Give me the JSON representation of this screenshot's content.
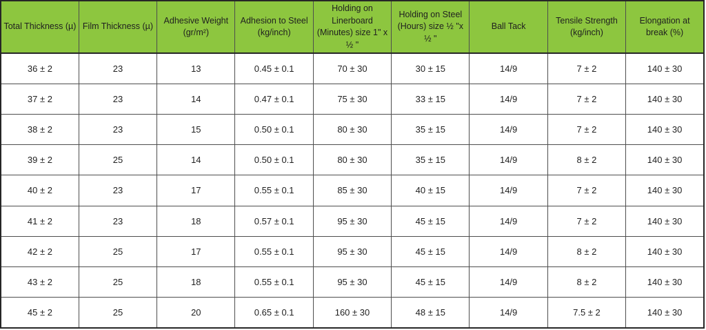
{
  "table": {
    "title": "adhesive-tape-specification-table",
    "colors": {
      "header_bg": "#8dc63f",
      "border_inner": "#4d4d4d",
      "border_outer": "#262626",
      "text": "#1f1f1f",
      "row_bg": "#ffffff"
    },
    "headers": [
      "Total Thickness (µ)",
      "Film Thickness (µ)",
      "Adhesive Weight\n(gr/m²)",
      "Adhesion to Steel\n(kg/inch)",
      "Holding on\nLinerboard\n(Minutes) size 1\" x\n½ \"",
      "Holding on Steel\n(Hours)  size  ½ \"x\n½ \"",
      "Ball Tack",
      "Tensile Strength\n(kg/inch)",
      "Elongation at\nbreak   (%)"
    ],
    "rows": [
      [
        "36 ± 2",
        "23",
        "13",
        "0.45 ± 0.1",
        "70 ± 30",
        "30 ± 15",
        "14/9",
        "7 ± 2",
        "140 ± 30"
      ],
      [
        "37 ± 2",
        "23",
        "14",
        "0.47 ± 0.1",
        "75 ± 30",
        "33 ± 15",
        "14/9",
        "7 ± 2",
        "140 ± 30"
      ],
      [
        "38 ± 2",
        "23",
        "15",
        "0.50 ± 0.1",
        "80 ± 30",
        "35 ± 15",
        "14/9",
        "7 ± 2",
        "140 ± 30"
      ],
      [
        "39 ± 2",
        "25",
        "14",
        "0.50 ± 0.1",
        "80 ± 30",
        "35 ± 15",
        "14/9",
        "8 ± 2",
        "140 ± 30"
      ],
      [
        "40 ± 2",
        "23",
        "17",
        "0.55 ± 0.1",
        "85 ± 30",
        "40 ± 15",
        "14/9",
        "7 ± 2",
        "140 ± 30"
      ],
      [
        "41 ± 2",
        "23",
        "18",
        "0.57 ± 0.1",
        "95 ± 30",
        "45 ± 15",
        "14/9",
        "7 ± 2",
        "140 ± 30"
      ],
      [
        "42 ± 2",
        "25",
        "17",
        "0.55 ± 0.1",
        "95 ± 30",
        "45 ± 15",
        "14/9",
        "8 ± 2",
        "140 ± 30"
      ],
      [
        "43 ± 2",
        "25",
        "18",
        "0.55 ± 0.1",
        "95 ± 30",
        "45 ± 15",
        "14/9",
        "8 ± 2",
        "140 ± 30"
      ],
      [
        "45 ± 2",
        "25",
        "20",
        "0.65 ± 0.1",
        "160 ± 30",
        "48 ± 15",
        "14/9",
        "7.5 ± 2",
        "140 ± 30"
      ]
    ]
  }
}
